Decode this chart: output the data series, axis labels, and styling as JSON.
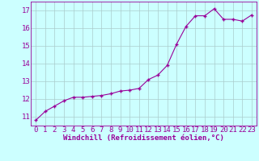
{
  "x_data": [
    0,
    1,
    2,
    3,
    4,
    5,
    6,
    7,
    8,
    9,
    10,
    11,
    12,
    13,
    14,
    15,
    16,
    17,
    18,
    19,
    20,
    21,
    22,
    23
  ],
  "y_data": [
    10.8,
    11.3,
    11.6,
    11.9,
    12.1,
    12.1,
    12.15,
    12.2,
    12.3,
    12.45,
    12.5,
    12.6,
    13.1,
    13.35,
    13.9,
    15.1,
    16.1,
    16.7,
    16.7,
    17.1,
    16.5,
    16.5,
    16.4,
    16.75
  ],
  "line_color": "#990099",
  "marker_color": "#990099",
  "bg_color": "#ccffff",
  "grid_color": "#aacccc",
  "xlabel": "Windchill (Refroidissement éolien,°C)",
  "ylabel_ticks": [
    11,
    12,
    13,
    14,
    15,
    16,
    17
  ],
  "xlim": [
    -0.5,
    23.5
  ],
  "ylim": [
    10.5,
    17.5
  ],
  "xtick_labels": [
    "0",
    "1",
    "2",
    "3",
    "4",
    "5",
    "6",
    "7",
    "8",
    "9",
    "10",
    "11",
    "12",
    "13",
    "14",
    "15",
    "16",
    "17",
    "18",
    "19",
    "20",
    "21",
    "22",
    "23"
  ],
  "font_color": "#990099",
  "xlabel_fontsize": 6.5,
  "tick_fontsize": 6.5
}
